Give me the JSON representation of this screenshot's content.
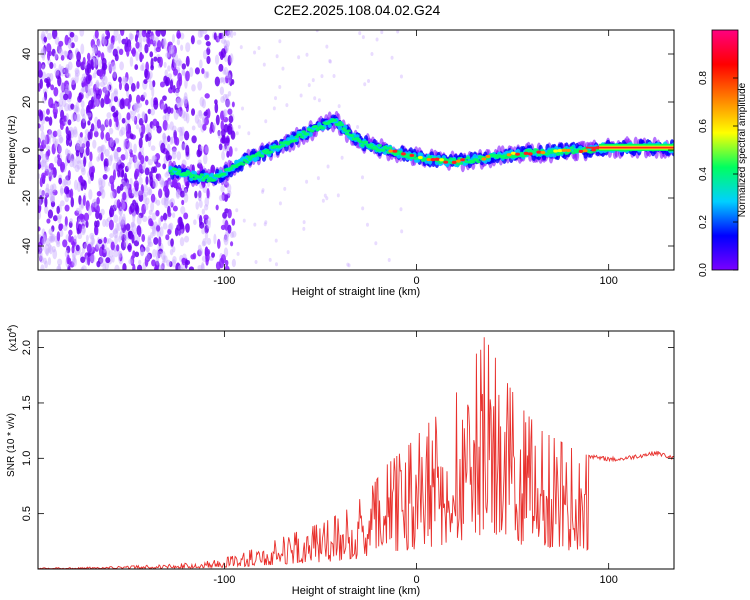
{
  "title": "C2E2.2025.108.04.02.G24",
  "colors": {
    "accent": "#e8302c",
    "axis": "#000000",
    "low": "#7a00ff"
  },
  "chart_data": [
    {
      "type": "heatmap",
      "title": "C2E2.2025.108.04.02.G24",
      "xlabel": "Height of straight line (km)",
      "ylabel": "Frequency (Hz)",
      "xlim": [
        -197,
        134
      ],
      "ylim": [
        -50,
        50
      ],
      "x_ticks": [
        -100,
        0,
        100
      ],
      "y_ticks": [
        -40,
        -20,
        0,
        20,
        40
      ],
      "ridge": {
        "x": [
          -125,
          -115,
          -105,
          -95,
          -85,
          -75,
          -65,
          -55,
          -47,
          -42,
          -38,
          -33,
          -28,
          -20,
          -10,
          0,
          10,
          20,
          30,
          40,
          50,
          60,
          70,
          80,
          90,
          100,
          110,
          120,
          134
        ],
        "y": [
          -9,
          -11,
          -12,
          -7,
          -3,
          0,
          4,
          8,
          11,
          12,
          9,
          5,
          3,
          1,
          -1,
          -3,
          -4,
          -5,
          -4,
          -3,
          -2,
          -1,
          -1,
          0,
          0,
          1,
          1,
          1,
          1
        ]
      },
      "colorbar": {
        "label": "Normalized spectral amplitude",
        "range": [
          0,
          1
        ],
        "ticks": [
          "0.0",
          "0.2",
          "0.4",
          "0.6",
          "0.8"
        ],
        "tick_values": [
          0,
          0.2,
          0.4,
          0.6,
          0.8
        ],
        "colors": [
          "#7a00ff",
          "#0000ff",
          "#00d0ff",
          "#00ff60",
          "#ffff00",
          "#ff8000",
          "#ff0000",
          "#ff0080"
        ]
      }
    },
    {
      "type": "line",
      "xlabel": "Height of straight line (km)",
      "ylabel": "SNR (10 * v/v)",
      "y_multiplier": "(x10",
      "y_multiplier_exp": "4",
      "y_multiplier_close": ")",
      "xlim": [
        -197,
        134
      ],
      "ylim": [
        0,
        2.15
      ],
      "x_ticks": [
        -100,
        0,
        100
      ],
      "y_ticks": [
        0.5,
        1.0,
        1.5,
        2.0
      ],
      "y_tick_labels": [
        "0.5",
        "1.0",
        "1.5",
        "2.0"
      ],
      "series": [
        {
          "color": "#e8302c",
          "x": [
            -197,
            -160,
            -130,
            -115,
            -105,
            -95,
            -85,
            -75,
            -65,
            -55,
            -45,
            -35,
            -25,
            -15,
            -5,
            5,
            15,
            25,
            35,
            40,
            45,
            55,
            65,
            75,
            85,
            95,
            105,
            115,
            125,
            134
          ],
          "y": [
            0.01,
            0.02,
            0.04,
            0.06,
            0.08,
            0.12,
            0.18,
            0.25,
            0.32,
            0.38,
            0.45,
            0.55,
            0.7,
            0.95,
            1.1,
            1.3,
            1.45,
            1.7,
            2.1,
            1.95,
            1.75,
            1.45,
            1.25,
            1.15,
            1.05,
            1.0,
            0.99,
            1.02,
            1.05,
            1.0
          ]
        }
      ]
    }
  ]
}
